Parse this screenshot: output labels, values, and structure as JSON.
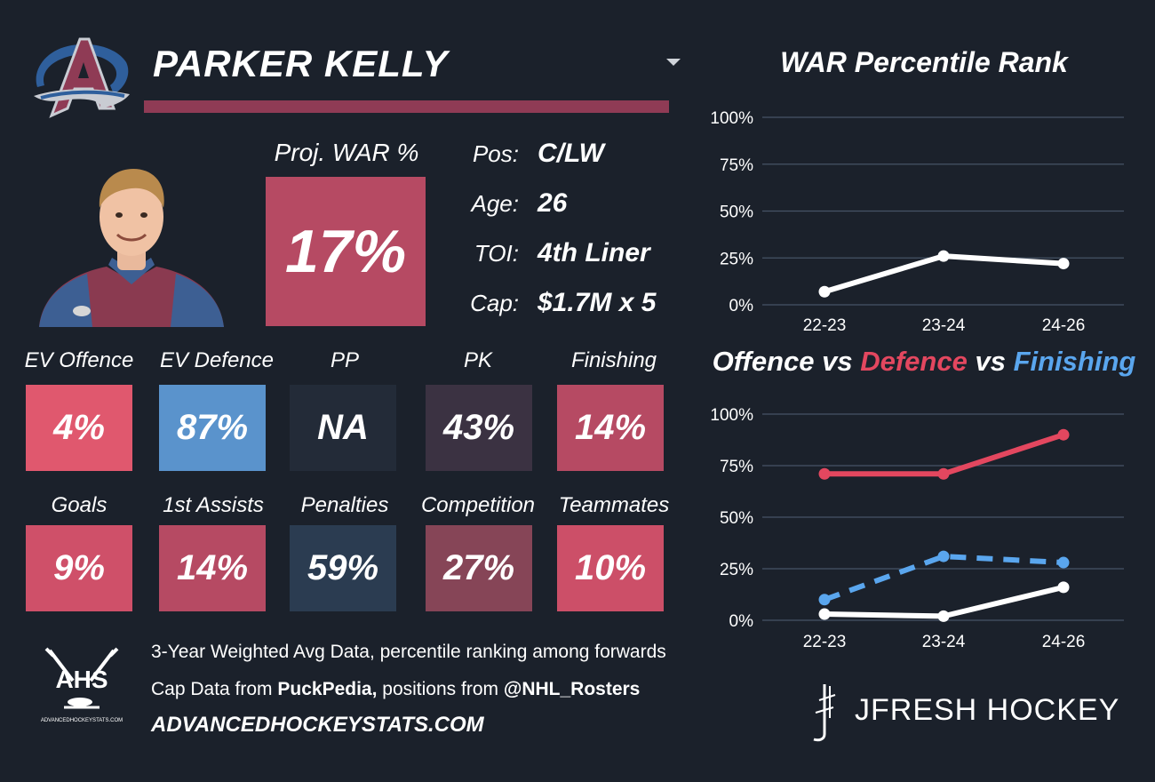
{
  "player": {
    "name": "PARKER KELLY",
    "team_logo_icon": "colorado-avalanche-logo"
  },
  "projection": {
    "label": "Proj. WAR %",
    "value": "17%"
  },
  "info": [
    {
      "label": "Pos:",
      "value": "C/LW"
    },
    {
      "label": "Age:",
      "value": "26"
    },
    {
      "label": "TOI:",
      "value": "4th Liner"
    },
    {
      "label": "Cap:",
      "value": "$1.7M x 5"
    }
  ],
  "stats_row1": [
    {
      "label": "EV Offence",
      "value": "4%",
      "color": "#e0586e"
    },
    {
      "label": "EV Defence",
      "value": "87%",
      "color": "#5a93cc"
    },
    {
      "label": "PP",
      "value": "NA",
      "color": "#232b38"
    },
    {
      "label": "PK",
      "value": "43%",
      "color": "#3b3242"
    },
    {
      "label": "Finishing",
      "value": "14%",
      "color": "#b64a63"
    }
  ],
  "stats_row2": [
    {
      "label": "Goals",
      "value": "9%",
      "color": "#cf5069"
    },
    {
      "label": "1st Assists",
      "value": "14%",
      "color": "#b64a63"
    },
    {
      "label": "Penalties",
      "value": "59%",
      "color": "#2b3c51"
    },
    {
      "label": "Competition",
      "value": "27%",
      "color": "#864557"
    },
    {
      "label": "Teammates",
      "value": "10%",
      "color": "#cc4f68"
    }
  ],
  "footer": {
    "line1": "3-Year Weighted Avg Data, percentile ranking among forwards",
    "line2_prefix": "Cap Data from ",
    "line2_source1": "PuckPedia,",
    "line2_mid": " positions from ",
    "line2_source2": "@NHL_Rosters",
    "url": "ADVANCEDHOCKEYSTATS.COM",
    "ahs_logo_text": "AHS",
    "ahs_logo_small": "ADVANCEDHOCKEYSTATS.COM",
    "brand": "JFRESH HOCKEY"
  },
  "colors": {
    "name_bar": "#8f3b55",
    "proj_box": "#b64a63",
    "offence": "#ffffff",
    "defence": "#e3475f",
    "finishing": "#5aa6ee",
    "grid": "#465366"
  },
  "chart_data": [
    {
      "type": "line",
      "title": "WAR Percentile Rank",
      "categories": [
        "22-23",
        "23-24",
        "24-26"
      ],
      "yticks": [
        "100%",
        "75%",
        "50%",
        "25%",
        "0%"
      ],
      "ylim": [
        0,
        100
      ],
      "grid": true,
      "series": [
        {
          "values": [
            7,
            26,
            22
          ],
          "color": "#ffffff",
          "dashed": false
        }
      ]
    },
    {
      "type": "line",
      "title_parts": [
        "Offence",
        " vs ",
        "Defence",
        " vs ",
        "Finishing"
      ],
      "categories": [
        "22-23",
        "23-24",
        "24-26"
      ],
      "yticks": [
        "100%",
        "75%",
        "50%",
        "25%",
        "0%"
      ],
      "ylim": [
        0,
        100
      ],
      "grid": true,
      "series": [
        {
          "name": "Offence",
          "values": [
            3,
            2,
            16
          ],
          "color": "#ffffff",
          "dashed": false
        },
        {
          "name": "Defence",
          "values": [
            71,
            71,
            90
          ],
          "color": "#e3475f",
          "dashed": false
        },
        {
          "name": "Finishing",
          "values": [
            10,
            31,
            28
          ],
          "color": "#5aa6ee",
          "dashed": true
        }
      ]
    }
  ]
}
